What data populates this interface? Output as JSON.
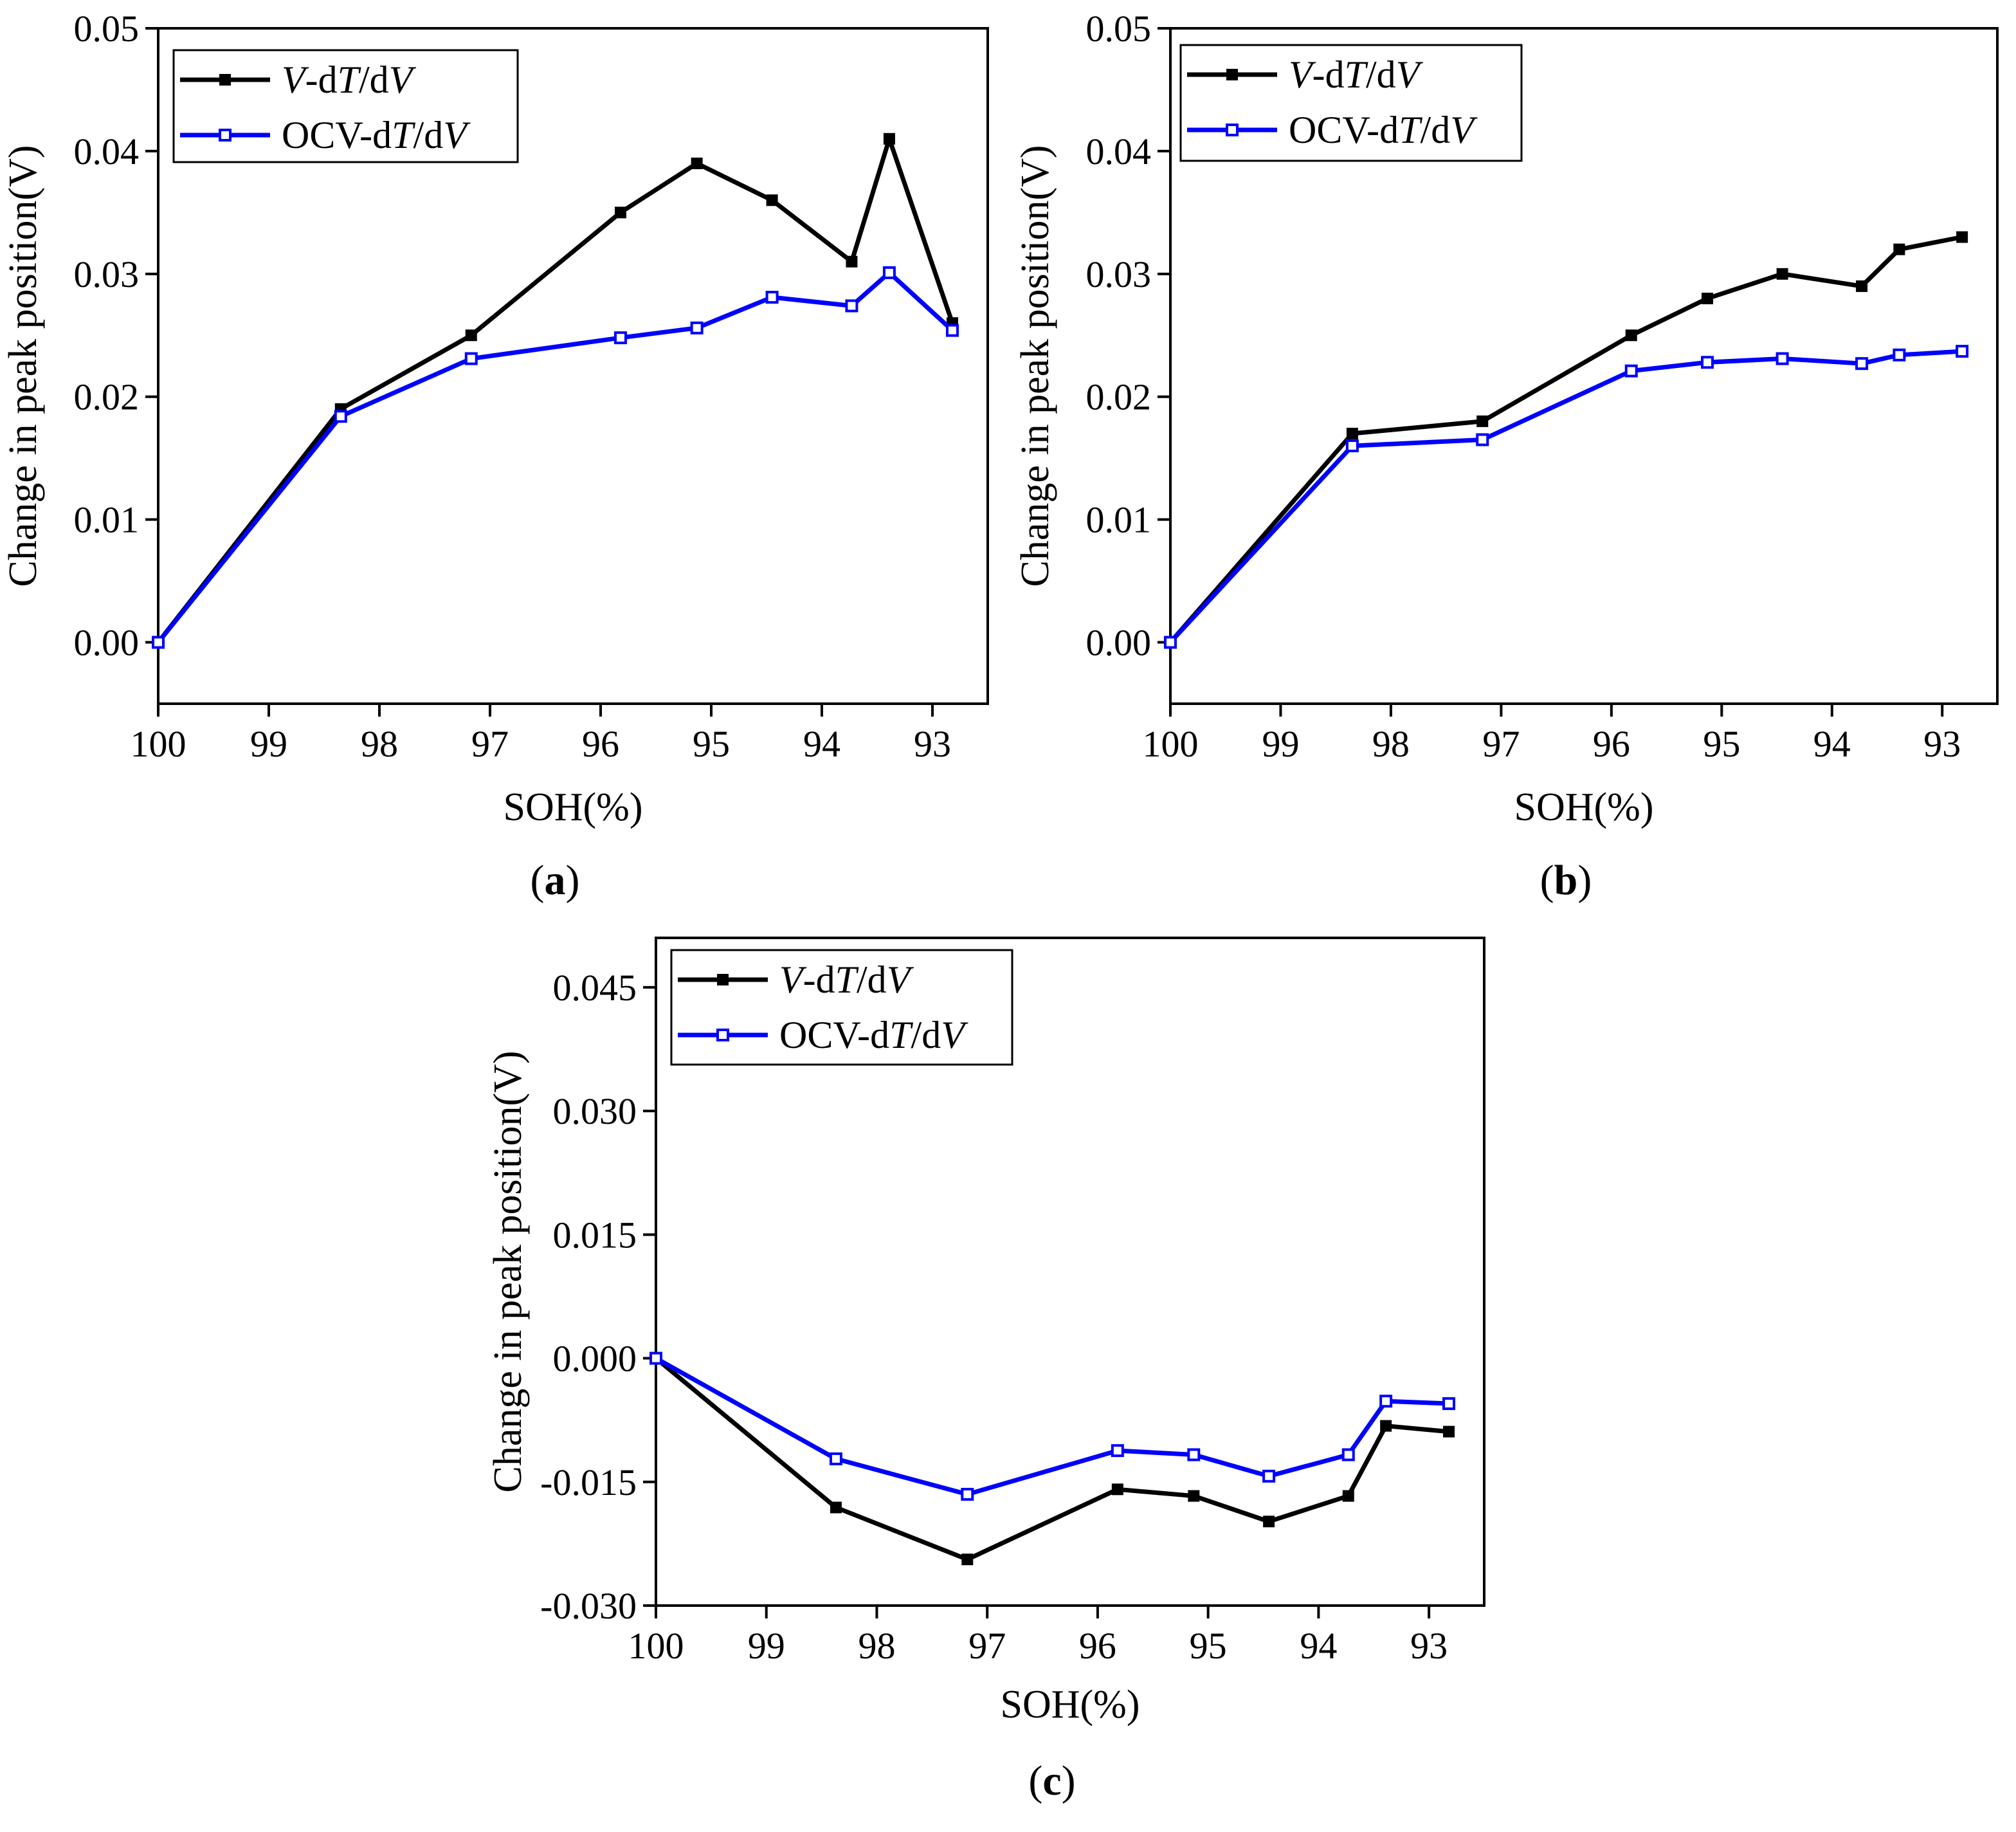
{
  "figure": {
    "x_axis_label": "SOH(%)",
    "y_axis_label": "Change in peak position(V)"
  },
  "legend": [
    {
      "prefix": "",
      "italic_a": "V",
      "mid": "-d",
      "italic_b": "T",
      "slash": "/d",
      "italic_c": "V",
      "color": "#000000",
      "marker": "filled-square"
    },
    {
      "prefix": "OCV-d",
      "italic_a": "",
      "mid": "",
      "italic_b": "T",
      "slash": "/d",
      "italic_c": "V",
      "color": "#0000ff",
      "marker": "open-square"
    }
  ],
  "chart_data": [
    {
      "type": "line",
      "panel_label": "(a)",
      "panel_letter": "a",
      "xlabel": "SOH(%)",
      "ylabel": "Change in peak position(V)",
      "x_reversed": true,
      "xlim": [
        100,
        92.5
      ],
      "xticks": [
        100,
        99,
        98,
        97,
        96,
        95,
        94,
        93
      ],
      "xtick_labels": [
        "100",
        "99",
        "98",
        "97",
        "96",
        "95",
        "94",
        "93"
      ],
      "ylim": [
        -0.005,
        0.05
      ],
      "yticks": [
        0.0,
        0.01,
        0.02,
        0.03,
        0.04,
        0.05
      ],
      "ytick_labels": [
        "0.00",
        "0.01",
        "0.02",
        "0.03",
        "0.04",
        "0.05"
      ],
      "grid": false,
      "legend_position": "top-left",
      "series": [
        {
          "name": "V-dT/dV",
          "color": "#000000",
          "marker": "filled-square",
          "x": [
            100,
            98.35,
            97.17,
            95.82,
            95.13,
            94.45,
            93.73,
            93.39,
            92.82
          ],
          "y": [
            0.0,
            0.019,
            0.025,
            0.035,
            0.039,
            0.036,
            0.031,
            0.041,
            0.026
          ]
        },
        {
          "name": "OCV-dT/dV",
          "color": "#0000ff",
          "marker": "open-square",
          "x": [
            100,
            98.35,
            97.17,
            95.82,
            95.13,
            94.45,
            93.73,
            93.39,
            92.82
          ],
          "y": [
            0.0,
            0.0184,
            0.0231,
            0.0248,
            0.0256,
            0.0281,
            0.0274,
            0.0301,
            0.0254
          ]
        }
      ]
    },
    {
      "type": "line",
      "panel_label": "(b)",
      "panel_letter": "b",
      "xlabel": "SOH(%)",
      "ylabel": "Change in peak position(V)",
      "x_reversed": true,
      "xlim": [
        100,
        92.5
      ],
      "xticks": [
        100,
        99,
        98,
        97,
        96,
        95,
        94,
        93
      ],
      "xtick_labels": [
        "100",
        "99",
        "98",
        "97",
        "96",
        "95",
        "94",
        "93"
      ],
      "ylim": [
        -0.005,
        0.05
      ],
      "yticks": [
        0.0,
        0.01,
        0.02,
        0.03,
        0.04,
        0.05
      ],
      "ytick_labels": [
        "0.00",
        "0.01",
        "0.02",
        "0.03",
        "0.04",
        "0.05"
      ],
      "grid": false,
      "legend_position": "top-left",
      "series": [
        {
          "name": "V-dT/dV",
          "color": "#000000",
          "marker": "filled-square",
          "x": [
            100,
            98.35,
            97.17,
            95.82,
            95.13,
            94.45,
            93.73,
            93.39,
            92.82
          ],
          "y": [
            0.0,
            0.017,
            0.018,
            0.025,
            0.028,
            0.03,
            0.029,
            0.032,
            0.033
          ]
        },
        {
          "name": "OCV-dT/dV",
          "color": "#0000ff",
          "marker": "open-square",
          "x": [
            100,
            98.35,
            97.17,
            95.82,
            95.13,
            94.45,
            93.73,
            93.39,
            92.82
          ],
          "y": [
            0.0,
            0.016,
            0.0165,
            0.0221,
            0.0228,
            0.0231,
            0.0227,
            0.0234,
            0.0237
          ]
        }
      ]
    },
    {
      "type": "line",
      "panel_label": "(c)",
      "panel_letter": "c",
      "xlabel": "SOH(%)",
      "ylabel": "Change in peak position(V)",
      "x_reversed": true,
      "xlim": [
        100,
        92.5
      ],
      "xticks": [
        100,
        99,
        98,
        97,
        96,
        95,
        94,
        93
      ],
      "xtick_labels": [
        "100",
        "99",
        "98",
        "97",
        "96",
        "95",
        "94",
        "93"
      ],
      "ylim": [
        -0.03,
        0.051
      ],
      "yticks": [
        -0.03,
        -0.015,
        0.0,
        0.015,
        0.03,
        0.045
      ],
      "ytick_labels": [
        "-0.030",
        "-0.015",
        "0.000",
        "0.015",
        "0.030",
        "0.045"
      ],
      "grid": false,
      "legend_position": "top-left",
      "series": [
        {
          "name": "V-dT/dV",
          "color": "#000000",
          "marker": "filled-square",
          "x": [
            100,
            98.37,
            97.18,
            95.82,
            95.13,
            94.45,
            93.73,
            93.39,
            92.82
          ],
          "y": [
            0.0,
            -0.0181,
            -0.0244,
            -0.0159,
            -0.0167,
            -0.0198,
            -0.0167,
            -0.0082,
            -0.0089
          ]
        },
        {
          "name": "OCV-dT/dV",
          "color": "#0000ff",
          "marker": "open-square",
          "x": [
            100,
            98.37,
            97.18,
            95.82,
            95.13,
            94.45,
            93.73,
            93.39,
            92.82
          ],
          "y": [
            0.0,
            -0.0122,
            -0.0165,
            -0.0112,
            -0.0117,
            -0.0143,
            -0.0117,
            -0.0052,
            -0.0055
          ]
        }
      ]
    }
  ]
}
